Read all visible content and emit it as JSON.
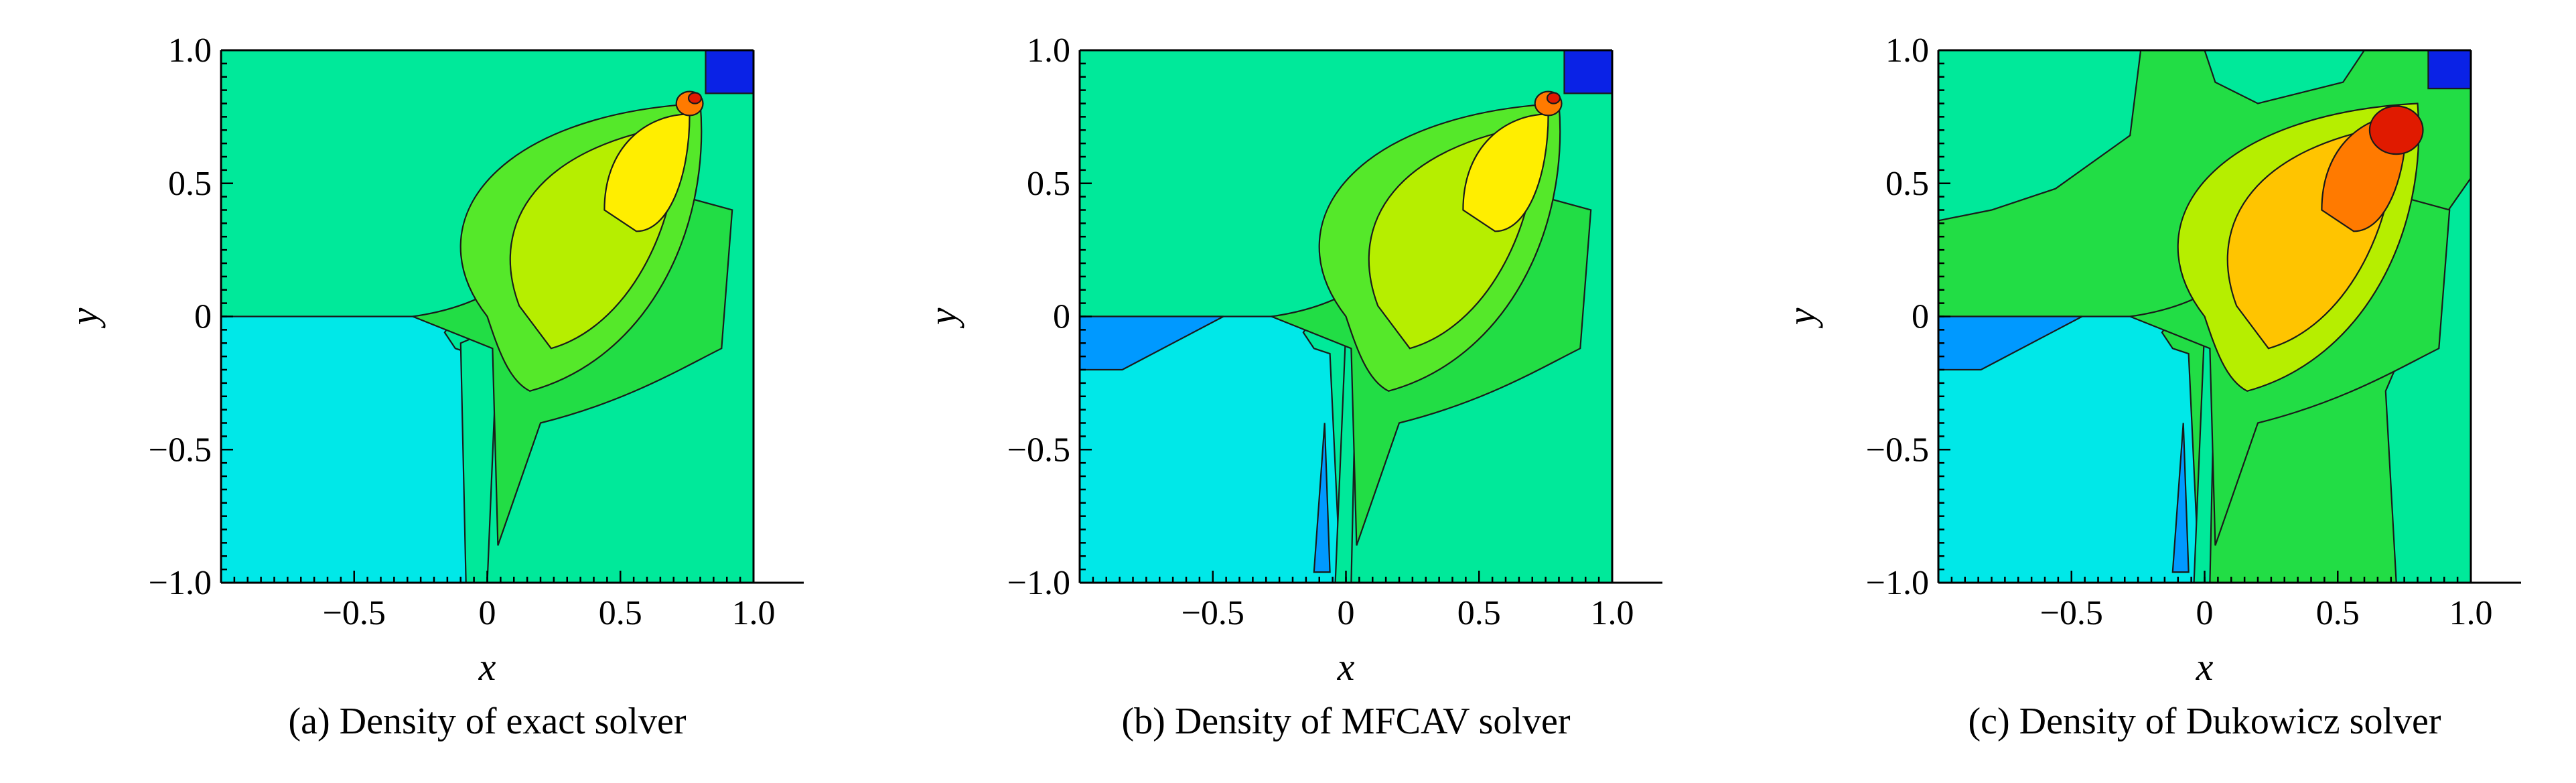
{
  "colors": {
    "background": "#00e99a",
    "light_cyan": "#00e8e8",
    "cyan_pool": "#16f0f0",
    "blue_mid": "#0099ff",
    "blue_deep": "#0a22e6",
    "green": "#22dd45",
    "green_mid": "#55e82a",
    "lime": "#b6ee00",
    "yellow": "#ffee00",
    "gold": "#ffc400",
    "orange": "#ff7a00",
    "red": "#e01a00"
  },
  "chart_data": [
    {
      "type": "heatmap",
      "variant": "filled-contour",
      "caption": "(a) Density of exact solver",
      "xlabel": "x",
      "ylabel": "y",
      "xlim": [
        -1.0,
        1.0
      ],
      "ylim": [
        -1.0,
        1.0
      ],
      "xticks": [
        "−0.5",
        "0",
        "0.5",
        "1.0"
      ],
      "yticks": [
        "1.0",
        "0.5",
        "0",
        "−0.5",
        "−1.0"
      ],
      "xtick_values": [
        -0.5,
        0,
        0.5,
        1.0
      ],
      "ytick_values": [
        1.0,
        0.5,
        0,
        -0.5,
        -1.0
      ],
      "regions": [
        {
          "name": "low-density-quadrant",
          "color": "light_cyan",
          "x": [
            -1.0,
            0.0
          ],
          "y": [
            -1.0,
            0.0
          ]
        },
        {
          "name": "mushroom-jet",
          "color": "lime",
          "center": [
            0.45,
            0.45
          ]
        },
        {
          "name": "peak",
          "color": "red",
          "center": [
            0.78,
            0.78
          ]
        },
        {
          "name": "corner-min",
          "color": "blue_deep",
          "x": [
            0.85,
            1.0
          ],
          "y": [
            0.85,
            1.0
          ]
        }
      ]
    },
    {
      "type": "heatmap",
      "variant": "filled-contour",
      "caption": "(b) Density of MFCAV solver",
      "xlabel": "x",
      "ylabel": "y",
      "xlim": [
        -1.0,
        1.0
      ],
      "ylim": [
        -1.0,
        1.0
      ],
      "xticks": [
        "−0.5",
        "0",
        "0.5",
        "1.0"
      ],
      "yticks": [
        "1.0",
        "0.5",
        "0",
        "−0.5",
        "−1.0"
      ],
      "xtick_values": [
        -0.5,
        0,
        0.5,
        1.0
      ],
      "ytick_values": [
        1.0,
        0.5,
        0,
        -0.5,
        -1.0
      ],
      "regions": [
        {
          "name": "low-density-quadrant",
          "color": "light_cyan",
          "x": [
            -1.0,
            0.0
          ],
          "y": [
            -1.0,
            0.0
          ]
        },
        {
          "name": "mushroom-jet",
          "color": "lime",
          "center": [
            0.45,
            0.45
          ]
        },
        {
          "name": "peak",
          "color": "red",
          "center": [
            0.8,
            0.8
          ]
        },
        {
          "name": "corner-min",
          "color": "blue_deep",
          "x": [
            0.85,
            1.0
          ],
          "y": [
            0.85,
            1.0
          ]
        }
      ]
    },
    {
      "type": "heatmap",
      "variant": "filled-contour",
      "caption": "(c) Density of Dukowicz solver",
      "xlabel": "x",
      "ylabel": "y",
      "xlim": [
        -1.0,
        1.0
      ],
      "ylim": [
        -1.0,
        1.0
      ],
      "xticks": [
        "−0.5",
        "0",
        "0.5",
        "1.0"
      ],
      "yticks": [
        "1.0",
        "0.5",
        "0",
        "−0.5",
        "−1.0"
      ],
      "xtick_values": [
        -0.5,
        0,
        0.5,
        1.0
      ],
      "ytick_values": [
        1.0,
        0.5,
        0,
        -0.5,
        -1.0
      ],
      "regions": [
        {
          "name": "low-density-quadrant",
          "color": "light_cyan",
          "x": [
            -1.0,
            0.0
          ],
          "y": [
            -1.0,
            0.0
          ]
        },
        {
          "name": "mushroom-jet",
          "color": "gold",
          "center": [
            0.45,
            0.45
          ]
        },
        {
          "name": "peak",
          "color": "red",
          "center": [
            0.72,
            0.72
          ]
        },
        {
          "name": "corner-min",
          "color": "blue_deep",
          "x": [
            0.88,
            1.0
          ],
          "y": [
            0.9,
            1.0
          ]
        }
      ]
    }
  ]
}
